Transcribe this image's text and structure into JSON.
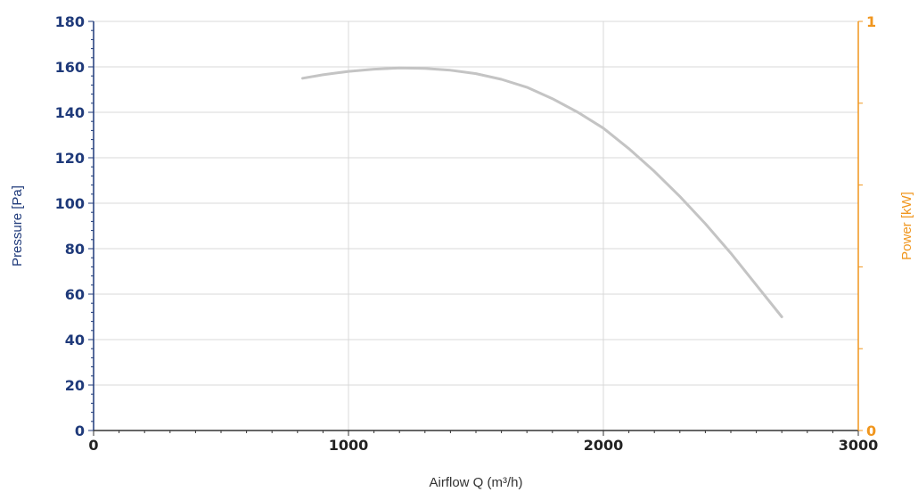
{
  "chart_data": {
    "type": "line",
    "title": "",
    "xlabel": "Airflow Q (m³/h)",
    "ylabel": "Pressure [Pa]",
    "y2label": "Power [kW]",
    "xlim": [
      0,
      3000
    ],
    "ylim": [
      0,
      180
    ],
    "y2lim": [
      0,
      1
    ],
    "x_ticks": [
      0,
      1000,
      2000,
      3000
    ],
    "y_ticks": [
      0,
      20,
      40,
      60,
      80,
      100,
      120,
      140,
      160,
      180
    ],
    "y2_ticks": [
      0,
      1
    ],
    "grid": true,
    "series": [
      {
        "axis": "left",
        "x": [
          820,
          900,
          1000,
          1100,
          1200,
          1300,
          1400,
          1500,
          1600,
          1700,
          1800,
          1900,
          2000,
          2100,
          2200,
          2300,
          2400,
          2500,
          2600,
          2700
        ],
        "y": [
          155,
          156.5,
          158,
          159,
          159.5,
          159.3,
          158.5,
          157,
          154.5,
          151,
          146,
          140,
          133,
          124,
          114,
          103,
          91,
          78,
          64,
          50
        ]
      }
    ]
  },
  "colors": {
    "left_axis": "#1f3a7a",
    "right_axis": "#f0961e",
    "curve": "#c4c4c4",
    "grid": "#d9d9d9"
  }
}
